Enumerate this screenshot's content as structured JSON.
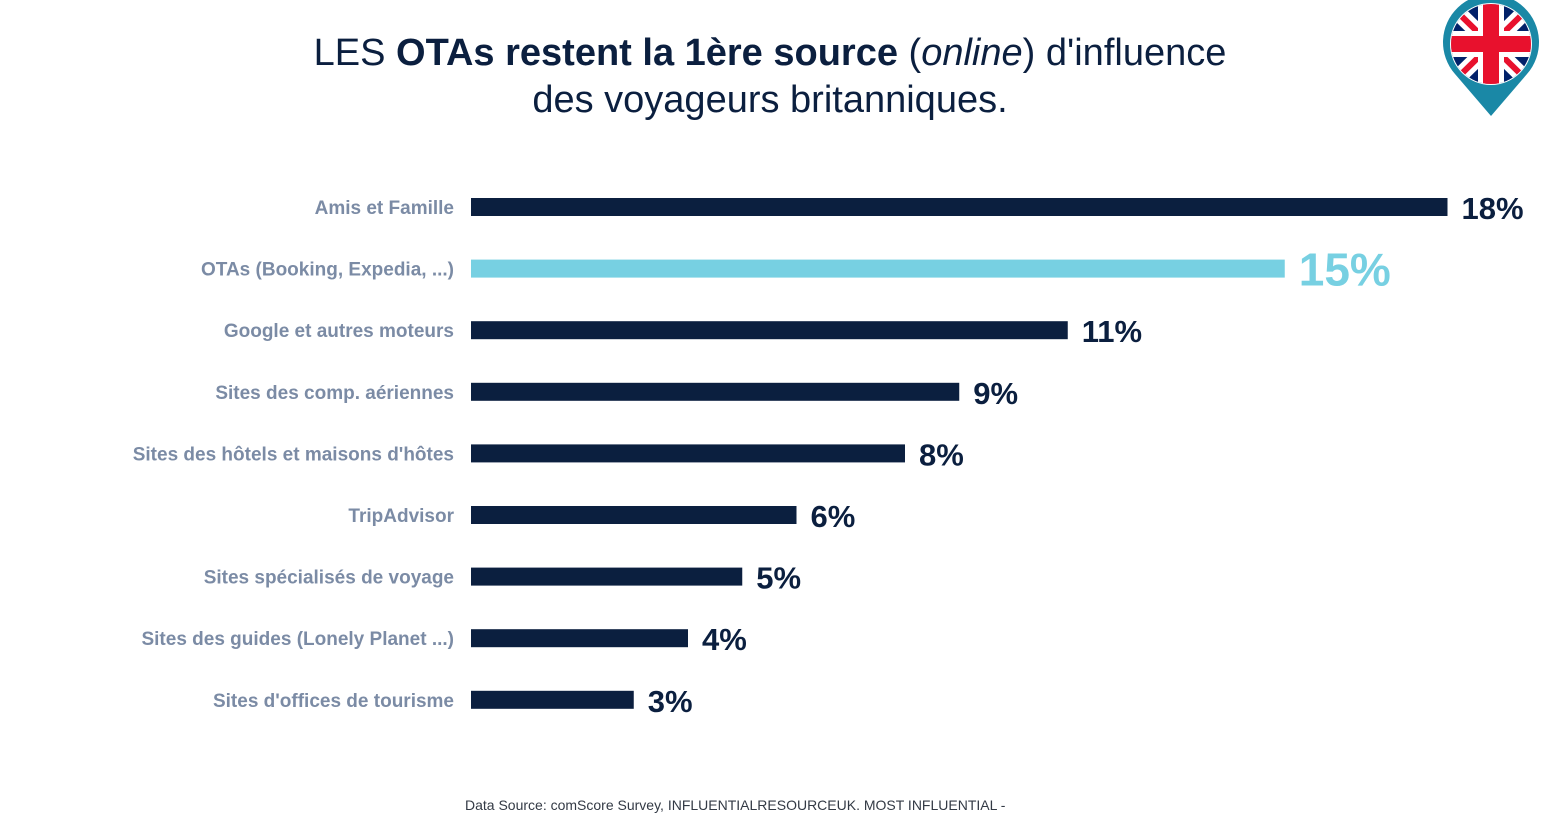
{
  "title": {
    "line1_a": "LES ",
    "line1_b": "OTAs restent la 1ère source",
    "line1_c": " (",
    "line1_d": "online",
    "line1_e": ") d'influence",
    "line2": "des voyageurs britanniques."
  },
  "source": "Data Source: comScore Survey, INFLUENTIALRESOURCEUK. MOST INFLUENTIAL -",
  "flag_icon": "uk-flag-location-pin-icon",
  "colors": {
    "bar": "#0b1f3f",
    "highlight": "#77d0e2",
    "label": "#7b8ba5",
    "pin": "#1a88a6"
  },
  "chart_data": {
    "type": "bar",
    "orientation": "horizontal",
    "categories": [
      "Amis et Famille",
      "OTAs (Booking, Expedia, ...)",
      "Google et autres moteurs",
      "Sites des comp. aériennes",
      "Sites des hôtels et maisons d'hôtes",
      "TripAdvisor",
      "Sites spécialisés de voyage",
      "Sites des guides (Lonely Planet ...)",
      "Sites d'offices de tourisme"
    ],
    "values": [
      18,
      15,
      11,
      9,
      8,
      6,
      5,
      4,
      3
    ],
    "value_labels": [
      "18%",
      "15%",
      "11%",
      "9%",
      "8%",
      "6%",
      "5%",
      "4%",
      "3%"
    ],
    "highlight_category": "OTAs (Booking, Expedia, ...)",
    "xlabel": "",
    "ylabel": "",
    "grid": false,
    "legend": "none"
  }
}
